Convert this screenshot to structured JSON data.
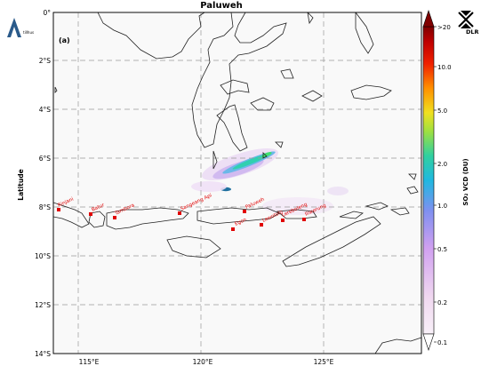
{
  "map": {
    "title": "Paluweh",
    "panel_label": "(a)",
    "ylabel": "Latitude",
    "lat_ticks": [
      "0°",
      "2°S",
      "4°S",
      "6°S",
      "8°S",
      "10°S",
      "12°S",
      "14°S"
    ],
    "lon_ticks": [
      "115°E",
      "120°E",
      "125°E"
    ],
    "volcanoes": [
      "Rinjani",
      "Batur",
      "Tambora",
      "Sangeang Api",
      "Paluweh",
      "Egon",
      "Lewotolo",
      "Lereboleng",
      "Iliwerung"
    ],
    "gridlines": true
  },
  "colorbar": {
    "label": "SO₂ VCD (DU)",
    "ticks": [
      ">20",
      "10.0",
      "5.0",
      "2.0",
      "1.0",
      "0.5",
      "0.2",
      "0.1"
    ],
    "colors": {
      "high": "#800000",
      "red": "#e82000",
      "orange": "#ffa000",
      "yellow": "#e8e000",
      "green": "#40d080",
      "cyan": "#20c8c8",
      "blue": "#7090f0",
      "violet": "#d0a0f0",
      "low": "#f8f0f8"
    }
  },
  "logos": {
    "dlr_text": "DLR"
  },
  "accent": {
    "volcano_marker": "#e00000",
    "grid": "#999999"
  }
}
